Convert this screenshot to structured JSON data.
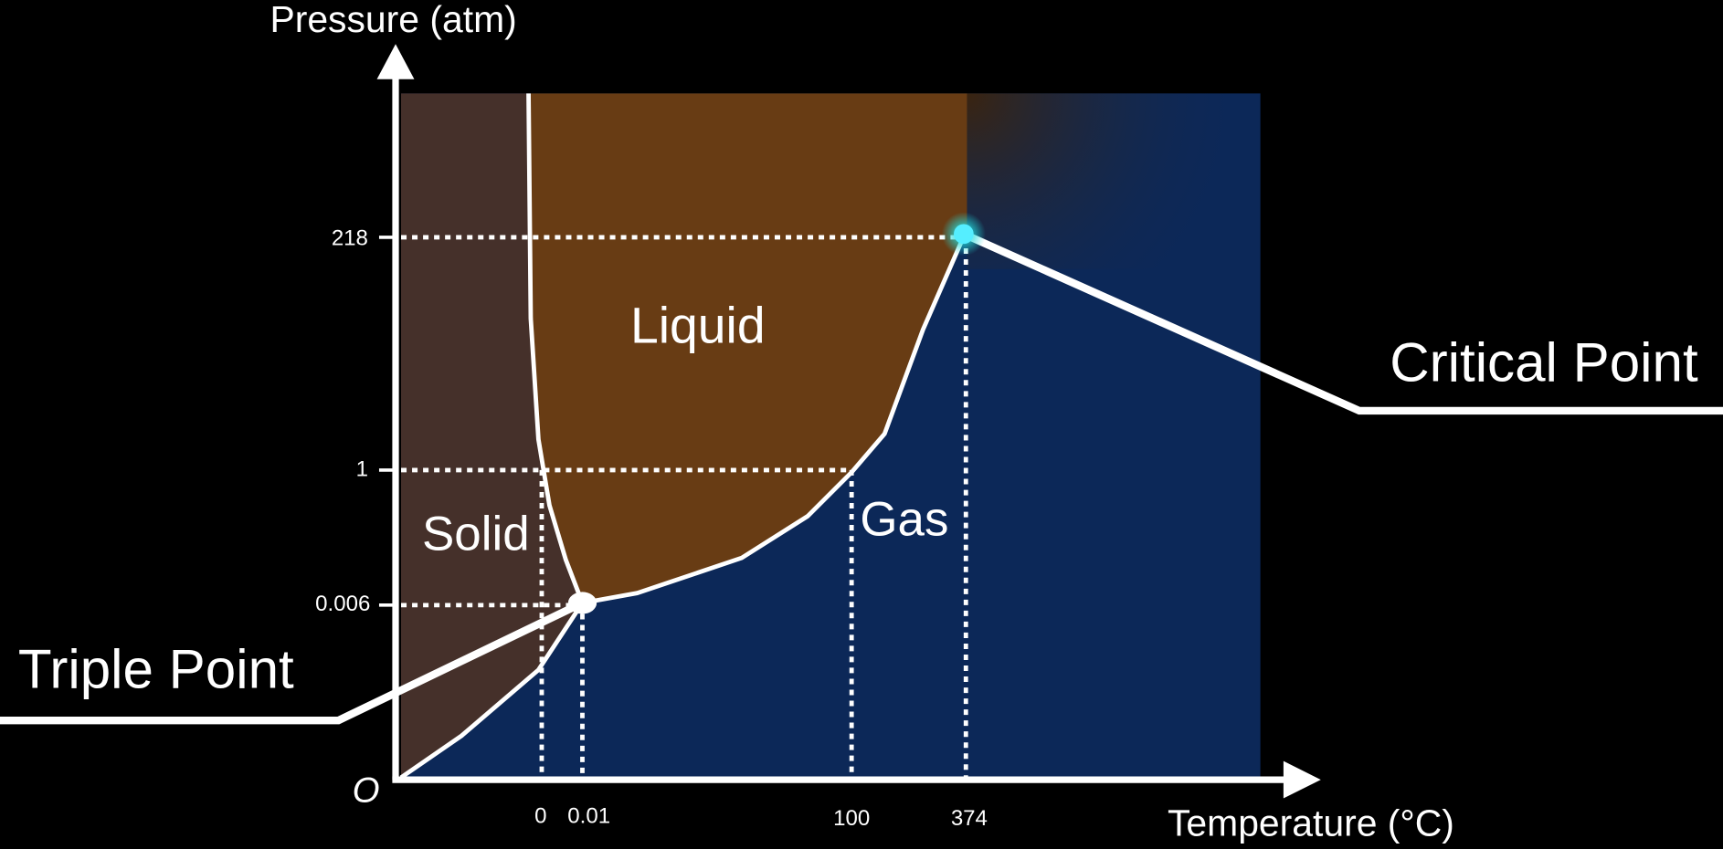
{
  "axes": {
    "y_label": "Pressure (atm)",
    "x_label": "Temperature (°C)",
    "origin": "O",
    "y_ticks": [
      "218",
      "1",
      "0.006"
    ],
    "x_ticks": [
      "0",
      "0.01",
      "100",
      "374"
    ]
  },
  "regions": {
    "solid": "Solid",
    "liquid": "Liquid",
    "gas": "Gas"
  },
  "callouts": {
    "critical_point": "Critical Point",
    "triple_point": "Triple Point"
  }
}
